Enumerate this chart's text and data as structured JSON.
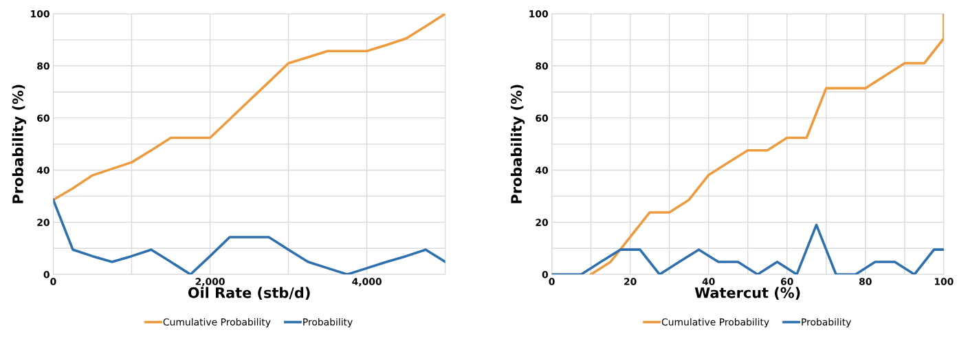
{
  "chart_data": [
    {
      "type": "line",
      "xlabel": "Oil Rate (stb/d)",
      "ylabel": "Probability (%)",
      "xlim": [
        0,
        5000
      ],
      "ylim": [
        0,
        100
      ],
      "xticks": [
        0,
        {
          "value": 1000,
          "label": null
        },
        {
          "value": 2000,
          "label": "2,000"
        },
        {
          "value": 3000,
          "label": null
        },
        {
          "value": 4000,
          "label": "4,000"
        },
        {
          "value": 5000,
          "label": null
        }
      ],
      "yticks": [
        0,
        {
          "value": 10,
          "label": null
        },
        20,
        {
          "value": 30,
          "label": null
        },
        40,
        {
          "value": 50,
          "label": null
        },
        60,
        {
          "value": 70,
          "label": null
        },
        80,
        {
          "value": 90,
          "label": null
        },
        100
      ],
      "grid": true,
      "legend": "bottom",
      "line_style": "solid",
      "marker": "none",
      "series": [
        {
          "name": "Cumulative Probability",
          "color": "#ed9b3f",
          "x": [
            0,
            250,
            500,
            750,
            1000,
            1250,
            1500,
            1750,
            2000,
            2250,
            2500,
            2750,
            3000,
            3250,
            3500,
            3750,
            4000,
            4250,
            4500,
            4750,
            5000
          ],
          "values": [
            28.6,
            33,
            38,
            40.5,
            43,
            47.6,
            52.4,
            52.4,
            52.4,
            59.5,
            66.7,
            73.8,
            81,
            83.3,
            85.7,
            85.7,
            85.7,
            88,
            90.5,
            95.2,
            100
          ]
        },
        {
          "name": "Probability",
          "color": "#2e6fad",
          "x": [
            0,
            250,
            500,
            750,
            1000,
            1250,
            1500,
            1750,
            2000,
            2250,
            2500,
            2750,
            3000,
            3250,
            3500,
            3750,
            4000,
            4250,
            4500,
            4750,
            5000
          ],
          "values": [
            28.6,
            9.5,
            7,
            4.8,
            7,
            9.5,
            4.8,
            0,
            7,
            14.3,
            14.3,
            14.3,
            9.5,
            4.8,
            2.4,
            0,
            2.4,
            4.8,
            7,
            9.5,
            4.8
          ]
        }
      ]
    },
    {
      "type": "line",
      "xlabel": "Watercut (%)",
      "ylabel": "Probability (%)",
      "xlim": [
        0,
        100
      ],
      "ylim": [
        0,
        100
      ],
      "xticks": [
        0,
        {
          "value": 10,
          "label": null
        },
        20,
        {
          "value": 30,
          "label": null
        },
        40,
        {
          "value": 50,
          "label": null
        },
        60,
        {
          "value": 70,
          "label": null
        },
        80,
        {
          "value": 90,
          "label": null
        },
        100
      ],
      "yticks": [
        0,
        {
          "value": 10,
          "label": null
        },
        20,
        {
          "value": 30,
          "label": null
        },
        40,
        {
          "value": 50,
          "label": null
        },
        60,
        {
          "value": 70,
          "label": null
        },
        80,
        {
          "value": 90,
          "label": null
        },
        100
      ],
      "grid": true,
      "legend": "bottom",
      "line_style": "solid",
      "marker": "none",
      "series": [
        {
          "name": "Cumulative Probability",
          "color": "#ed9b3f",
          "x": [
            10,
            15,
            20,
            25,
            30,
            35,
            40,
            45,
            50,
            55,
            60,
            65,
            70,
            75,
            80,
            85,
            90,
            95,
            100,
            100
          ],
          "values": [
            0,
            4.8,
            14.3,
            23.8,
            23.8,
            28.6,
            38.1,
            42.9,
            47.6,
            47.6,
            52.4,
            52.4,
            71.4,
            71.4,
            71.4,
            76.2,
            81,
            81,
            90.5,
            100
          ]
        },
        {
          "name": "Probability",
          "color": "#2e6fad",
          "x": [
            0,
            7.5,
            12.5,
            17.5,
            22.5,
            27.5,
            32.5,
            37.5,
            42.5,
            47.5,
            52.5,
            57.5,
            62.5,
            67.5,
            72.5,
            77.5,
            82.5,
            87.5,
            92.5,
            97.5,
            100
          ],
          "values": [
            0,
            0,
            4.8,
            9.5,
            9.5,
            0,
            4.8,
            9.5,
            4.8,
            4.8,
            0,
            4.8,
            0,
            19,
            0,
            0,
            4.8,
            4.8,
            0,
            9.5,
            9.5
          ]
        }
      ]
    }
  ]
}
